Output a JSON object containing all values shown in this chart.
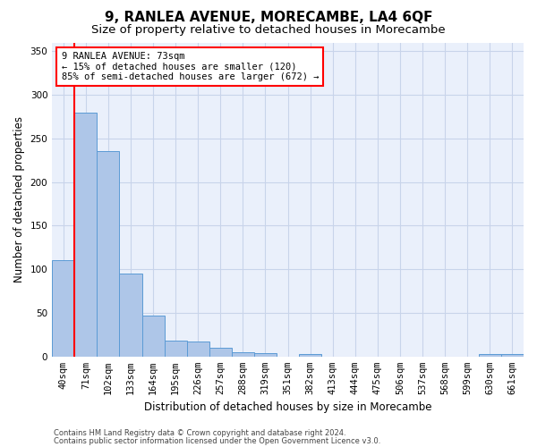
{
  "title": "9, RANLEA AVENUE, MORECAMBE, LA4 6QF",
  "subtitle": "Size of property relative to detached houses in Morecambe",
  "xlabel": "Distribution of detached houses by size in Morecambe",
  "ylabel": "Number of detached properties",
  "categories": [
    "40sqm",
    "71sqm",
    "102sqm",
    "133sqm",
    "164sqm",
    "195sqm",
    "226sqm",
    "257sqm",
    "288sqm",
    "319sqm",
    "351sqm",
    "382sqm",
    "413sqm",
    "444sqm",
    "475sqm",
    "506sqm",
    "537sqm",
    "568sqm",
    "599sqm",
    "630sqm",
    "661sqm"
  ],
  "values": [
    110,
    280,
    235,
    95,
    47,
    18,
    17,
    10,
    5,
    4,
    0,
    3,
    0,
    0,
    0,
    0,
    0,
    0,
    0,
    3,
    3
  ],
  "bar_color": "#aec6e8",
  "bar_edge_color": "#5b9bd5",
  "vline_x": 0.5,
  "vline_color": "red",
  "annotation_line1": "9 RANLEA AVENUE: 73sqm",
  "annotation_line2": "← 15% of detached houses are smaller (120)",
  "annotation_line3": "85% of semi-detached houses are larger (672) →",
  "annotation_box_color": "white",
  "annotation_box_edgecolor": "red",
  "ylim": [
    0,
    360
  ],
  "yticks": [
    0,
    50,
    100,
    150,
    200,
    250,
    300,
    350
  ],
  "footnote1": "Contains HM Land Registry data © Crown copyright and database right 2024.",
  "footnote2": "Contains public sector information licensed under the Open Government Licence v3.0.",
  "bg_color": "#eaf0fb",
  "grid_color": "#c8d4ea",
  "title_fontsize": 11,
  "subtitle_fontsize": 9.5,
  "axis_label_fontsize": 8.5,
  "tick_fontsize": 7.5,
  "annotation_fontsize": 7.5,
  "footnote_fontsize": 6
}
